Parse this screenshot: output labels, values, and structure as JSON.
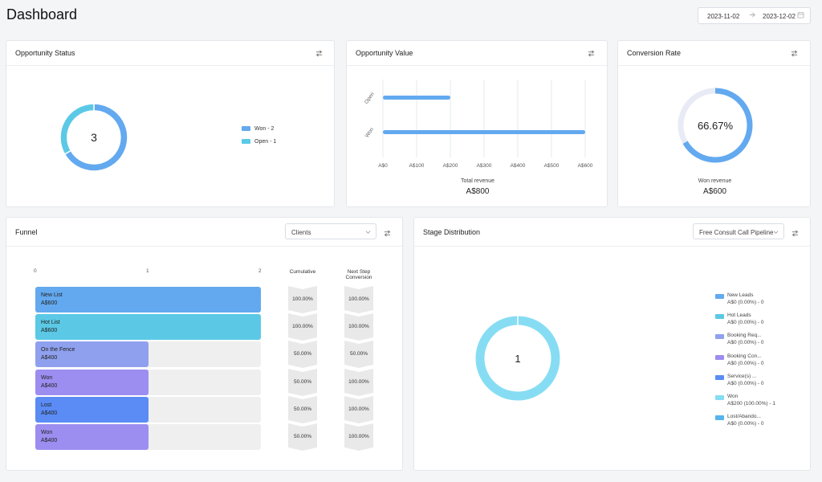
{
  "page": {
    "title": "Dashboard"
  },
  "date_range": {
    "start": "2023-11-02",
    "end": "2023-12-02"
  },
  "colors": {
    "won": "#63a9ef",
    "open": "#5bc9e6",
    "conv_track": "#e8ebf5",
    "conv_fill": "#63a9ef"
  },
  "opportunity_status": {
    "title": "Opportunity Status",
    "total": "3",
    "legend": [
      {
        "label": "Won - 2",
        "color": "#63a9ef"
      },
      {
        "label": "Open - 1",
        "color": "#5bc9e6"
      }
    ]
  },
  "opportunity_value": {
    "title": "Opportunity Value",
    "footer_label": "Total revenue",
    "footer_value": "A$800"
  },
  "conversion_rate": {
    "title": "Conversion Rate",
    "percent_label": "66.67%",
    "percent": 66.67,
    "footer_label": "Won revenue",
    "footer_value": "A$600"
  },
  "funnel": {
    "title": "Funnel",
    "filter_value": "Clients",
    "axis": [
      "0",
      "1",
      "2"
    ],
    "axis_max": 2,
    "col_cumulative": "Cumulative",
    "col_next_1": "Next Step",
    "col_next_2": "Conversion",
    "rows": [
      {
        "name": "New List",
        "amount": "A$600",
        "count": 2,
        "color": "#63a9ef",
        "cumulative": "100.00%",
        "next": "100.00%"
      },
      {
        "name": "Hot List",
        "amount": "A$600",
        "count": 2,
        "color": "#5bc9e6",
        "cumulative": "100.00%",
        "next": "100.00%"
      },
      {
        "name": "On the Fence",
        "amount": "A$400",
        "count": 1,
        "color": "#8fa0ee",
        "cumulative": "50.00%",
        "next": "50.00%"
      },
      {
        "name": "Won",
        "amount": "A$400",
        "count": 1,
        "color": "#9b8ef0",
        "cumulative": "50.00%",
        "next": "100.00%"
      },
      {
        "name": "Lost",
        "amount": "A$400",
        "count": 1,
        "color": "#5b8cf5",
        "cumulative": "50.00%",
        "next": "100.00%"
      },
      {
        "name": "Won",
        "amount": "A$400",
        "count": 1,
        "color": "#9b8ef0",
        "cumulative": "50.00%",
        "next": "100.00%"
      }
    ]
  },
  "stage_distribution": {
    "title": "Stage Distribution",
    "pipeline_value": "Free Consult Call Pipeline",
    "total": "1",
    "ring_color": "#86ddf3",
    "legend": [
      {
        "name": "New Leads",
        "value": "A$0 (0.00%) - 0",
        "color": "#63a9ef"
      },
      {
        "name": "Hot Leads",
        "value": "A$0 (0.00%) - 0",
        "color": "#5bc9e6"
      },
      {
        "name": "Booking Req...",
        "value": "A$0 (0.00%) - 0",
        "color": "#8fa0ee"
      },
      {
        "name": "Booking Con...",
        "value": "A$0 (0.00%) - 0",
        "color": "#9b8ef0"
      },
      {
        "name": "Service(s) ...",
        "value": "A$0 (0.00%) - 0",
        "color": "#5b8cf5"
      },
      {
        "name": "Won",
        "value": "A$200 (100.00%) - 1",
        "color": "#86ddf3"
      },
      {
        "name": "Lost/Abando...",
        "value": "A$0 (0.00%) - 0",
        "color": "#55b4ec"
      }
    ]
  },
  "chart_data": [
    {
      "type": "pie",
      "title": "Opportunity Status",
      "categories": [
        "Won",
        "Open"
      ],
      "values": [
        2,
        1
      ],
      "center_label": "3"
    },
    {
      "type": "bar",
      "orientation": "horizontal",
      "title": "Opportunity Value",
      "categories": [
        "Open",
        "Won"
      ],
      "values": [
        200,
        600
      ],
      "x_ticks": [
        "A$0",
        "A$100",
        "A$200",
        "A$300",
        "A$400",
        "A$500",
        "A$600"
      ],
      "xlim": [
        0,
        600
      ],
      "xlabel": "Total revenue"
    },
    {
      "type": "pie",
      "title": "Conversion Rate",
      "categories": [
        "Won"
      ],
      "values": [
        66.67
      ],
      "center_label": "66.67%"
    },
    {
      "type": "pie",
      "title": "Stage Distribution",
      "categories": [
        "Won"
      ],
      "values": [
        1
      ],
      "center_label": "1"
    }
  ]
}
